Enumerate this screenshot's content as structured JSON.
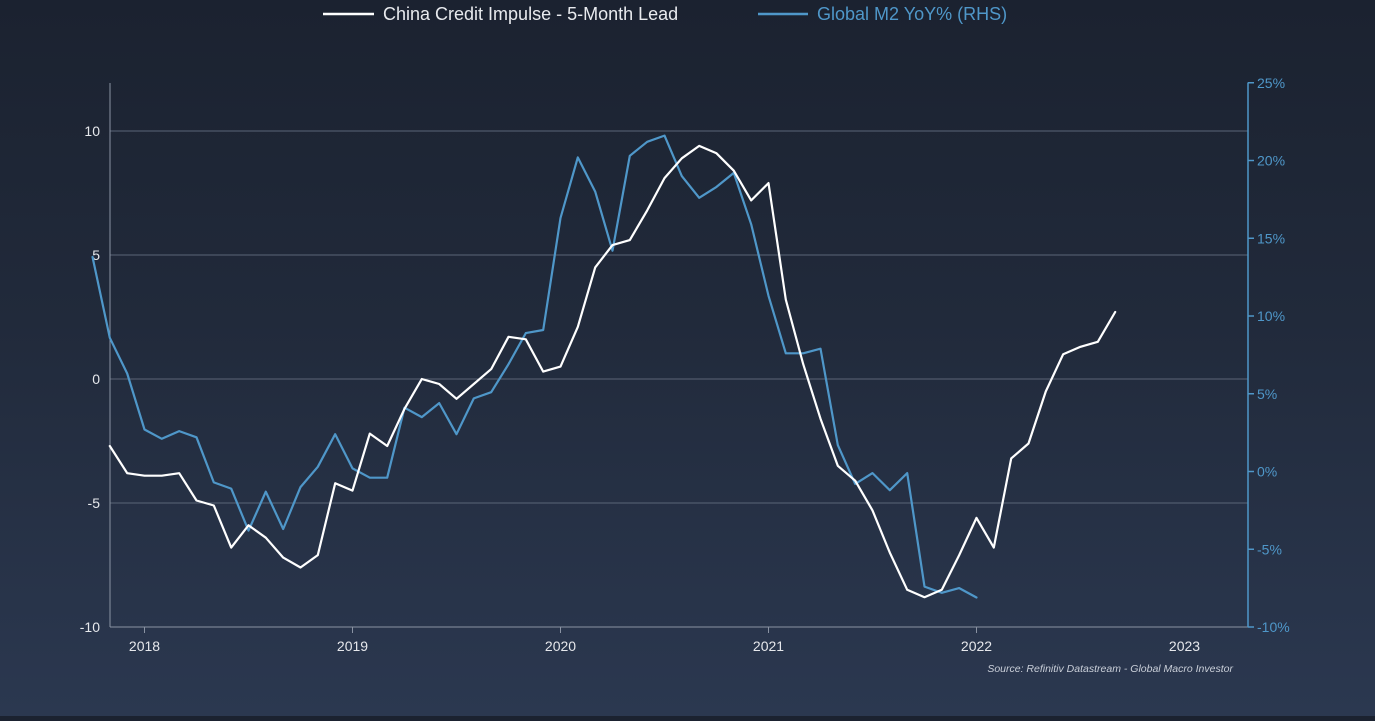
{
  "colors": {
    "background_top": "#1b2230",
    "background_bottom": "#2b3850",
    "series_1": "#ffffff",
    "series_2": "#4f97c9",
    "left_axis": "#e6e8ec",
    "right_axis": "#4f97c9",
    "gridline": "#5b6577",
    "source_text": "#c9ced8"
  },
  "legend": {
    "series_1_label": "China Credit Impulse - 5-Month Lead",
    "series_2_label": "Global M2 YoY% (RHS)"
  },
  "source": "Source: Refinitiv Datastream - Global Macro Investor",
  "chart_data": {
    "type": "line",
    "title": "",
    "grid": true,
    "legend_position": "top-center",
    "x_labels": [
      "2018",
      "2019",
      "2020",
      "2021",
      "2022",
      "2023"
    ],
    "x_range": [
      2017.75,
      2023.35
    ],
    "left_axis": {
      "ticks": [
        "10",
        "5",
        "0",
        "-5",
        "-10"
      ],
      "tick_values": [
        10,
        5,
        0,
        -5,
        -10
      ],
      "range": [
        -10,
        12
      ]
    },
    "right_axis": {
      "ticks": [
        "25%",
        "20%",
        "15%",
        "10%",
        "5%",
        "0%",
        "-5%",
        "-10%"
      ],
      "tick_values": [
        25,
        20,
        15,
        10,
        5,
        0,
        -5,
        -10
      ],
      "range": [
        -10,
        25
      ]
    },
    "series": [
      {
        "name": "China Credit Impulse - 5-Month Lead",
        "axis": "left",
        "points": [
          [
            2017.833,
            -2.7
          ],
          [
            2017.917,
            -3.8
          ],
          [
            2018.0,
            -3.9
          ],
          [
            2018.083,
            -3.9
          ],
          [
            2018.167,
            -3.8
          ],
          [
            2018.25,
            -4.9
          ],
          [
            2018.333,
            -5.1
          ],
          [
            2018.417,
            -6.8
          ],
          [
            2018.5,
            -5.9
          ],
          [
            2018.583,
            -6.4
          ],
          [
            2018.667,
            -7.2
          ],
          [
            2018.75,
            -7.6
          ],
          [
            2018.833,
            -7.1
          ],
          [
            2018.917,
            -4.2
          ],
          [
            2019.0,
            -4.5
          ],
          [
            2019.083,
            -2.2
          ],
          [
            2019.167,
            -2.7
          ],
          [
            2019.25,
            -1.2
          ],
          [
            2019.333,
            0.0
          ],
          [
            2019.417,
            -0.2
          ],
          [
            2019.5,
            -0.8
          ],
          [
            2019.583,
            -0.2
          ],
          [
            2019.667,
            0.4
          ],
          [
            2019.75,
            1.7
          ],
          [
            2019.833,
            1.6
          ],
          [
            2019.917,
            0.3
          ],
          [
            2020.0,
            0.5
          ],
          [
            2020.083,
            2.1
          ],
          [
            2020.167,
            4.5
          ],
          [
            2020.25,
            5.4
          ],
          [
            2020.333,
            5.6
          ],
          [
            2020.417,
            6.8
          ],
          [
            2020.5,
            8.1
          ],
          [
            2020.583,
            8.9
          ],
          [
            2020.667,
            9.4
          ],
          [
            2020.75,
            9.1
          ],
          [
            2020.833,
            8.4
          ],
          [
            2020.917,
            7.2
          ],
          [
            2021.0,
            7.9
          ],
          [
            2021.083,
            3.2
          ],
          [
            2021.167,
            0.6
          ],
          [
            2021.25,
            -1.6
          ],
          [
            2021.333,
            -3.5
          ],
          [
            2021.417,
            -4.1
          ],
          [
            2021.5,
            -5.3
          ],
          [
            2021.583,
            -7.0
          ],
          [
            2021.667,
            -8.5
          ],
          [
            2021.75,
            -8.8
          ],
          [
            2021.833,
            -8.5
          ],
          [
            2021.917,
            -7.1
          ],
          [
            2022.0,
            -5.6
          ],
          [
            2022.083,
            -6.8
          ],
          [
            2022.167,
            -3.2
          ],
          [
            2022.25,
            -2.6
          ],
          [
            2022.333,
            -0.5
          ],
          [
            2022.417,
            1.0
          ],
          [
            2022.5,
            1.3
          ],
          [
            2022.583,
            1.5
          ],
          [
            2022.667,
            2.7
          ]
        ]
      },
      {
        "name": "Global M2 YoY% (RHS)",
        "axis": "right",
        "points": [
          [
            2017.75,
            13.8
          ],
          [
            2017.833,
            8.6
          ],
          [
            2017.917,
            6.3
          ],
          [
            2018.0,
            2.7
          ],
          [
            2018.083,
            2.1
          ],
          [
            2018.167,
            2.6
          ],
          [
            2018.25,
            2.2
          ],
          [
            2018.333,
            -0.7
          ],
          [
            2018.417,
            -1.1
          ],
          [
            2018.5,
            -3.8
          ],
          [
            2018.583,
            -1.3
          ],
          [
            2018.667,
            -3.7
          ],
          [
            2018.75,
            -1.0
          ],
          [
            2018.833,
            0.3
          ],
          [
            2018.917,
            2.4
          ],
          [
            2019.0,
            0.2
          ],
          [
            2019.083,
            -0.4
          ],
          [
            2019.167,
            -0.4
          ],
          [
            2019.25,
            4.1
          ],
          [
            2019.333,
            3.5
          ],
          [
            2019.417,
            4.4
          ],
          [
            2019.5,
            2.4
          ],
          [
            2019.583,
            4.7
          ],
          [
            2019.667,
            5.1
          ],
          [
            2019.75,
            6.9
          ],
          [
            2019.833,
            8.9
          ],
          [
            2019.917,
            9.1
          ],
          [
            2020.0,
            16.3
          ],
          [
            2020.083,
            20.2
          ],
          [
            2020.167,
            18.0
          ],
          [
            2020.25,
            14.2
          ],
          [
            2020.333,
            20.3
          ],
          [
            2020.417,
            21.2
          ],
          [
            2020.5,
            21.6
          ],
          [
            2020.583,
            19.0
          ],
          [
            2020.667,
            17.6
          ],
          [
            2020.75,
            18.3
          ],
          [
            2020.833,
            19.2
          ],
          [
            2020.917,
            15.9
          ],
          [
            2021.0,
            11.3
          ],
          [
            2021.083,
            7.6
          ],
          [
            2021.167,
            7.6
          ],
          [
            2021.25,
            7.9
          ],
          [
            2021.333,
            1.7
          ],
          [
            2021.417,
            -0.8
          ],
          [
            2021.5,
            -0.1
          ],
          [
            2021.583,
            -1.2
          ],
          [
            2021.667,
            -0.1
          ],
          [
            2021.75,
            -7.4
          ],
          [
            2021.833,
            -7.8
          ],
          [
            2021.917,
            -7.5
          ],
          [
            2022.0,
            -8.1
          ]
        ]
      }
    ]
  }
}
